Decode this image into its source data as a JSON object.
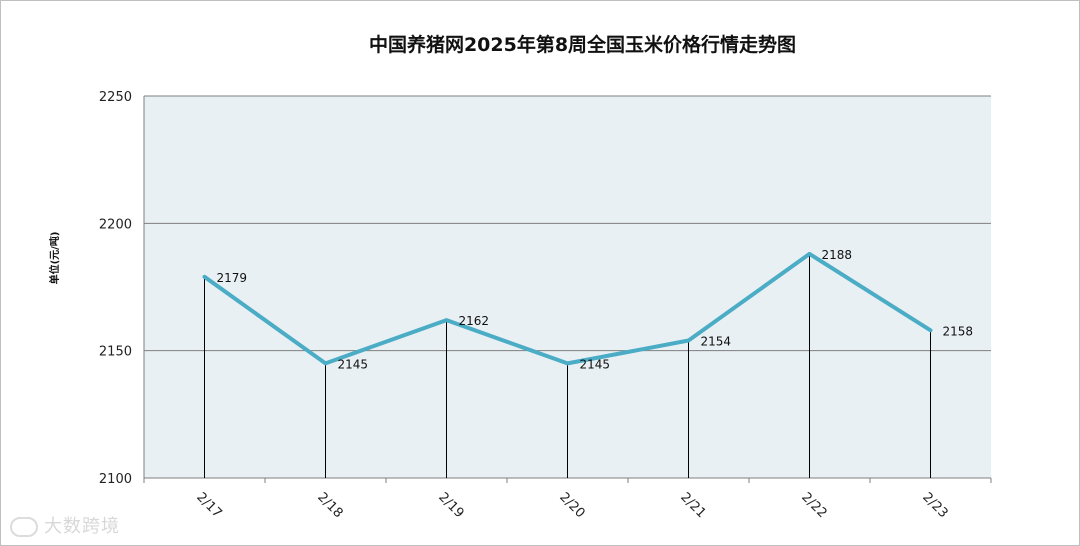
{
  "chart_data": {
    "type": "line",
    "title": "中国养猪网2025年第8周全国玉米价格行情走势图",
    "ylabel": "单位(元/吨)",
    "xlabel": "",
    "categories": [
      "2/17",
      "2/18",
      "2/19",
      "2/20",
      "2/21",
      "2/22",
      "2/23"
    ],
    "series": [
      {
        "values": [
          2179,
          2145,
          2162,
          2145,
          2154,
          2188,
          2158
        ]
      }
    ],
    "ylim": [
      2100,
      2250
    ],
    "yticks": [
      2100,
      2150,
      2200,
      2250
    ],
    "grid": true,
    "colors": {
      "line": "#4BACC6",
      "plot_background": "#E9F0F3",
      "gridline": "#7f7f7f",
      "drop_line": "#000000"
    }
  },
  "watermark": {
    "text": "大数跨境",
    "icon": "logo-icon"
  }
}
